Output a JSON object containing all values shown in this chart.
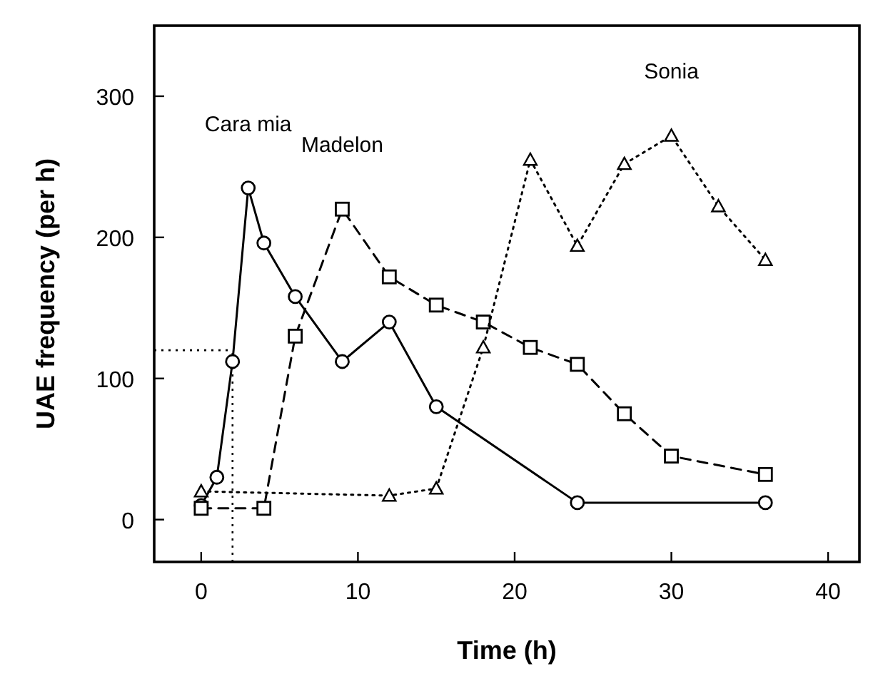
{
  "chart_data": {
    "type": "line",
    "xlabel": "Time (h)",
    "ylabel": "UAE frequency (per h)",
    "xlim": [
      -3,
      42
    ],
    "ylim": [
      -30,
      350
    ],
    "xticks": [
      0,
      10,
      20,
      30,
      40
    ],
    "yticks": [
      0,
      100,
      200,
      300
    ],
    "grid": false,
    "series": [
      {
        "name": "Cara mia",
        "color": "#000000",
        "marker": "circle",
        "line_style": "solid",
        "x": [
          0,
          1,
          2,
          3,
          4,
          6,
          9,
          12,
          15,
          24,
          36
        ],
        "values": [
          10,
          30,
          112,
          235,
          196,
          158,
          112,
          140,
          80,
          12,
          12
        ]
      },
      {
        "name": "Madelon",
        "color": "#000000",
        "marker": "square",
        "line_style": "dashed",
        "x": [
          0,
          4,
          6,
          9,
          12,
          15,
          18,
          21,
          24,
          27,
          30,
          36
        ],
        "values": [
          8,
          8,
          130,
          220,
          172,
          152,
          140,
          122,
          110,
          75,
          45,
          32
        ]
      },
      {
        "name": "Sonia",
        "color": "#000000",
        "marker": "triangle",
        "line_style": "dotted",
        "x": [
          0,
          12,
          15,
          18,
          21,
          24,
          27,
          30,
          33,
          36
        ],
        "values": [
          20,
          17,
          22,
          122,
          255,
          194,
          252,
          272,
          222,
          184
        ]
      }
    ],
    "ref_lines": [
      {
        "axis": "y",
        "value": 120,
        "line_style": "dotted",
        "color": "#000000"
      },
      {
        "axis": "x",
        "value": 2,
        "line_style": "dotted",
        "color": "#000000"
      }
    ]
  }
}
